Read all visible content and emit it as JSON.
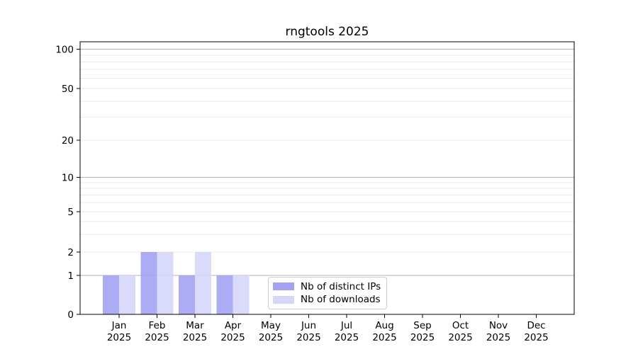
{
  "chart_data": {
    "type": "bar",
    "title": "rngtools 2025",
    "categories": [
      "Jan 2025",
      "Feb 2025",
      "Mar 2025",
      "Apr 2025",
      "May 2025",
      "Jun 2025",
      "Jul 2025",
      "Aug 2025",
      "Sep 2025",
      "Oct 2025",
      "Nov 2025",
      "Dec 2025"
    ],
    "series": [
      {
        "name": "Nb of distinct IPs",
        "color": "#a3a3f3",
        "values": [
          1,
          2,
          1,
          1,
          0,
          0,
          0,
          0,
          0,
          0,
          0,
          0
        ]
      },
      {
        "name": "Nb of downloads",
        "color": "#d6d6f9",
        "values": [
          1,
          2,
          2,
          1,
          0,
          0,
          0,
          0,
          0,
          0,
          0,
          0
        ]
      }
    ],
    "y_ticks": [
      0,
      1,
      2,
      5,
      10,
      20,
      50,
      100
    ],
    "y_scale": "symlog",
    "ylim": [
      0,
      112
    ],
    "xlabel": "",
    "ylabel": "",
    "grid": "horizontal major+minor",
    "legend_position": "inside lower-center-left"
  },
  "colors": {
    "background": "#ffffff",
    "axis": "#000000",
    "tick_text": "#000000",
    "major_grid": "#b3b3b3",
    "minor_grid": "#ebebeb",
    "legend_border": "#cccccc",
    "legend_bg": "#ffffff"
  }
}
